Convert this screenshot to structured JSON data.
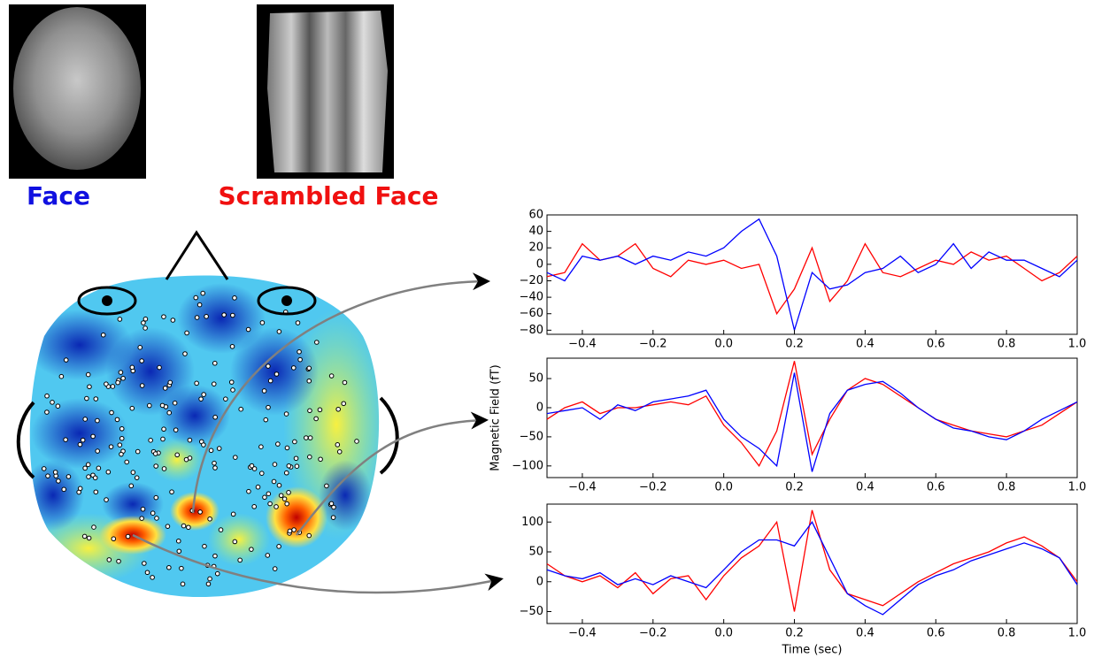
{
  "figure": {
    "face_label": "Face",
    "scrambled_label": "Scrambled Face"
  },
  "chart_data": [
    {
      "type": "line",
      "x": [
        -0.5,
        -0.45,
        -0.4,
        -0.35,
        -0.3,
        -0.25,
        -0.2,
        -0.15,
        -0.1,
        -0.05,
        0.0,
        0.05,
        0.1,
        0.15,
        0.2,
        0.25,
        0.3,
        0.35,
        0.4,
        0.45,
        0.5,
        0.55,
        0.6,
        0.65,
        0.7,
        0.75,
        0.8,
        0.85,
        0.9,
        0.95,
        1.0
      ],
      "series": [
        {
          "color": "#ff0000",
          "values": [
            -15,
            -10,
            25,
            5,
            10,
            25,
            -5,
            -15,
            5,
            0,
            5,
            -5,
            0,
            -60,
            -30,
            20,
            -45,
            -20,
            25,
            -10,
            -15,
            -5,
            5,
            0,
            15,
            5,
            10,
            -5,
            -20,
            -10,
            10
          ]
        },
        {
          "color": "#0000ff",
          "values": [
            -10,
            -20,
            10,
            5,
            10,
            0,
            10,
            5,
            15,
            10,
            20,
            40,
            55,
            10,
            -80,
            -10,
            -30,
            -25,
            -10,
            -5,
            10,
            -10,
            0,
            25,
            -5,
            15,
            5,
            5,
            -5,
            -15,
            5
          ]
        }
      ],
      "xlim": [
        -0.5,
        1.0
      ],
      "xticks": [
        {
          "value": -0.4,
          "label": "−0.4"
        },
        {
          "value": -0.2,
          "label": "−0.2"
        },
        {
          "value": 0,
          "label": "0.0"
        },
        0.2,
        0.4,
        0.6,
        0.8,
        {
          "value": 1,
          "label": "1.0"
        }
      ],
      "ylim": [
        -85,
        60
      ],
      "yticks": [
        60,
        40,
        20,
        0,
        {
          "value": -20,
          "label": "−20"
        },
        {
          "value": -40,
          "label": "−40"
        },
        {
          "value": -60,
          "label": "−60"
        },
        {
          "value": -80,
          "label": "−80"
        }
      ]
    },
    {
      "type": "line",
      "ylabel": "Magnetic Field (fT)",
      "x": [
        -0.5,
        -0.45,
        -0.4,
        -0.35,
        -0.3,
        -0.25,
        -0.2,
        -0.15,
        -0.1,
        -0.05,
        0.0,
        0.05,
        0.1,
        0.15,
        0.2,
        0.25,
        0.3,
        0.35,
        0.4,
        0.45,
        0.5,
        0.55,
        0.6,
        0.65,
        0.7,
        0.75,
        0.8,
        0.85,
        0.9,
        0.95,
        1.0
      ],
      "series": [
        {
          "color": "#ff0000",
          "values": [
            -20,
            0,
            10,
            -10,
            0,
            0,
            5,
            10,
            5,
            20,
            -30,
            -60,
            -100,
            -40,
            80,
            -80,
            -20,
            30,
            50,
            40,
            20,
            0,
            -20,
            -30,
            -40,
            -45,
            -50,
            -40,
            -30,
            -10,
            10
          ]
        },
        {
          "color": "#0000ff",
          "values": [
            -10,
            -5,
            0,
            -20,
            5,
            -5,
            10,
            15,
            20,
            30,
            -20,
            -50,
            -70,
            -100,
            60,
            -110,
            -10,
            30,
            40,
            45,
            25,
            0,
            -20,
            -35,
            -40,
            -50,
            -55,
            -40,
            -20,
            -5,
            10
          ]
        }
      ],
      "xlim": [
        -0.5,
        1.0
      ],
      "xticks": [
        {
          "value": -0.4,
          "label": "−0.4"
        },
        {
          "value": -0.2,
          "label": "−0.2"
        },
        {
          "value": 0,
          "label": "0.0"
        },
        0.2,
        0.4,
        0.6,
        0.8,
        {
          "value": 1,
          "label": "1.0"
        }
      ],
      "ylim": [
        -120,
        85
      ],
      "yticks": [
        50,
        0,
        {
          "value": -50,
          "label": "−50"
        },
        {
          "value": -100,
          "label": "−100"
        }
      ]
    },
    {
      "type": "line",
      "xlabel": "Time (sec)",
      "x": [
        -0.5,
        -0.45,
        -0.4,
        -0.35,
        -0.3,
        -0.25,
        -0.2,
        -0.15,
        -0.1,
        -0.05,
        0.0,
        0.05,
        0.1,
        0.15,
        0.2,
        0.25,
        0.3,
        0.35,
        0.4,
        0.45,
        0.5,
        0.55,
        0.6,
        0.65,
        0.7,
        0.75,
        0.8,
        0.85,
        0.9,
        0.95,
        1.0
      ],
      "series": [
        {
          "color": "#ff0000",
          "values": [
            30,
            10,
            0,
            10,
            -10,
            15,
            -20,
            5,
            10,
            -30,
            10,
            40,
            60,
            100,
            -50,
            120,
            20,
            -20,
            -30,
            -40,
            -20,
            0,
            15,
            30,
            40,
            50,
            65,
            75,
            60,
            40,
            0
          ]
        },
        {
          "color": "#0000ff",
          "values": [
            20,
            10,
            5,
            15,
            -5,
            5,
            -5,
            10,
            0,
            -10,
            20,
            50,
            70,
            70,
            60,
            100,
            40,
            -20,
            -40,
            -55,
            -30,
            -5,
            10,
            20,
            35,
            45,
            55,
            65,
            55,
            40,
            -5
          ]
        }
      ],
      "xlim": [
        -0.5,
        1.0
      ],
      "xticks": [
        {
          "value": -0.4,
          "label": "−0.4"
        },
        {
          "value": -0.2,
          "label": "−0.2"
        },
        {
          "value": 0,
          "label": "0.0"
        },
        0.2,
        0.4,
        0.6,
        0.8,
        {
          "value": 1,
          "label": "1.0"
        }
      ],
      "ylim": [
        -70,
        130
      ],
      "yticks": [
        {
          "value": -50,
          "label": "−50"
        },
        0,
        50,
        100
      ]
    }
  ]
}
